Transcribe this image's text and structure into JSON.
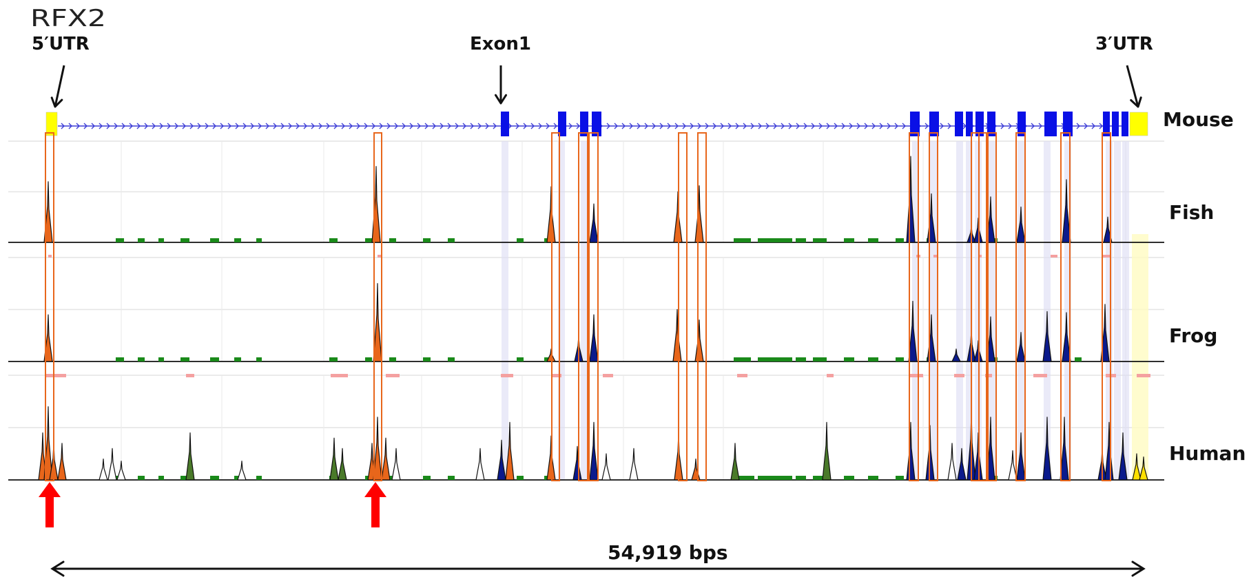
{
  "gene_name": "RFX2",
  "annotations": {
    "utr5": "5′UTR",
    "exon1": "Exon1",
    "utr3": "3′UTR"
  },
  "tracks": [
    {
      "label": "Mouse"
    },
    {
      "label": "Fish"
    },
    {
      "label": "Frog"
    },
    {
      "label": "Human"
    }
  ],
  "length_label": "54,919 bps",
  "colors": {
    "exon": "#0a10e6",
    "utr": "#ffff00",
    "intron_line": "#3b3bd6",
    "highlight_box": "#e8661b",
    "conservation": "#1a8a1a",
    "peak_fill_dark": "#0b1a8c",
    "peak_fill_orange": "#e8661b",
    "arrow_red": "#ff0000"
  }
}
